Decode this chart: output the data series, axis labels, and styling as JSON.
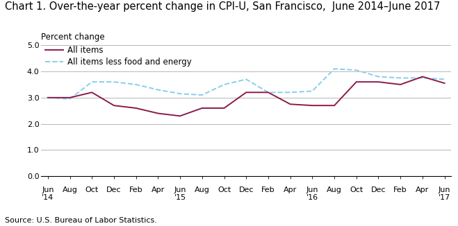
{
  "title": "Chart 1. Over-the-year percent change in CPI-U, San Francisco,  June 2014–June 2017",
  "ylabel": "Percent change",
  "source": "Source: U.S. Bureau of Labor Statistics.",
  "ylim": [
    0.0,
    5.0
  ],
  "yticks": [
    0.0,
    1.0,
    2.0,
    3.0,
    4.0,
    5.0
  ],
  "x_labels_line1": [
    "Jun",
    "Aug",
    "Oct",
    "Dec",
    "Feb",
    "Apr",
    "Jun",
    "Aug",
    "Oct",
    "Dec",
    "Feb",
    "Apr",
    "Jun",
    "Aug",
    "Oct",
    "Dec",
    "Feb",
    "Apr",
    "Jun"
  ],
  "x_labels_line2": [
    "'14",
    "",
    "",
    "",
    "",
    "",
    "'15",
    "",
    "",
    "",
    "",
    "",
    "'16",
    "",
    "",
    "",
    "",
    "",
    "'17"
  ],
  "all_items": [
    3.0,
    3.0,
    3.2,
    2.7,
    2.6,
    2.4,
    2.3,
    2.6,
    2.6,
    3.2,
    3.2,
    2.75,
    2.7,
    2.7,
    3.6,
    3.6,
    3.5,
    3.8,
    3.55
  ],
  "less_food_energy": [
    3.0,
    2.95,
    3.6,
    3.6,
    3.5,
    3.3,
    3.15,
    3.1,
    3.5,
    3.7,
    3.2,
    3.2,
    3.25,
    4.1,
    4.05,
    3.8,
    3.75,
    3.75,
    3.7
  ],
  "all_items_color": "#8B1A4A",
  "less_food_energy_color": "#87CEEB",
  "background_color": "#ffffff",
  "grid_color": "#aaaaaa",
  "title_fontsize": 10.5,
  "tick_fontsize": 8,
  "legend_fontsize": 8.5,
  "source_fontsize": 8
}
